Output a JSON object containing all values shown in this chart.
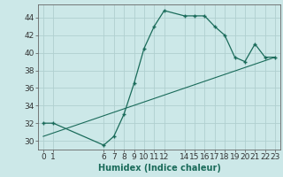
{
  "xlabel": "Humidex (Indice chaleur)",
  "background_color": "#cce8e8",
  "line_color": "#1a6b5a",
  "marker_color": "#1a6b5a",
  "grid_color": "#b0d0d0",
  "x_ticks": [
    0,
    1,
    6,
    7,
    8,
    9,
    10,
    11,
    12,
    14,
    15,
    16,
    17,
    18,
    19,
    20,
    21,
    22,
    23
  ],
  "x_tick_labels": [
    "0",
    "1",
    "6",
    "7",
    "8",
    "9",
    "10",
    "11",
    "12",
    "14",
    "15",
    "16",
    "17",
    "18",
    "19",
    "20",
    "21",
    "22",
    "23"
  ],
  "ylim": [
    29,
    45.5
  ],
  "xlim": [
    -0.5,
    23.5
  ],
  "yticks": [
    30,
    32,
    34,
    36,
    38,
    40,
    42,
    44
  ],
  "main_x": [
    0,
    1,
    6,
    7,
    8,
    9,
    10,
    11,
    12,
    14,
    15,
    16,
    17,
    18,
    19,
    20,
    21,
    22,
    23
  ],
  "main_y": [
    32,
    32,
    29.5,
    30.5,
    33,
    36.5,
    40.5,
    43,
    44.8,
    44.2,
    44.2,
    44.2,
    43,
    42,
    39.5,
    39,
    41,
    39.5,
    39.5
  ],
  "line2_x": [
    0,
    23
  ],
  "line2_y": [
    30.5,
    39.5
  ],
  "font_size_xlabel": 7,
  "font_size_ticks": 6.5
}
